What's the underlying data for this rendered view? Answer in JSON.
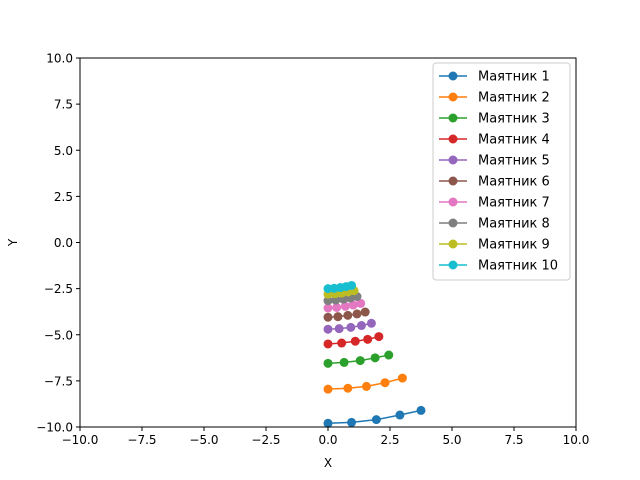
{
  "chart_data": {
    "type": "line",
    "xlabel": "X",
    "ylabel": "Y",
    "xlim": [
      -10,
      10
    ],
    "ylim": [
      -10,
      10
    ],
    "xticks": [
      -10,
      -7.5,
      -5,
      -2.5,
      0,
      2.5,
      5,
      7.5,
      10
    ],
    "yticks": [
      -10,
      -7.5,
      -5,
      -2.5,
      0,
      2.5,
      5,
      7.5,
      10
    ],
    "xtick_labels": [
      "−10.0",
      "−7.5",
      "−5.0",
      "−2.5",
      "0.0",
      "2.5",
      "5.0",
      "7.5",
      "10.0"
    ],
    "ytick_labels": [
      "−10.0",
      "−7.5",
      "−5.0",
      "−2.5",
      "0.0",
      "2.5",
      "5.0",
      "7.5",
      "10.0"
    ],
    "grid": false,
    "legend_position": "top-right",
    "marker": "circle",
    "series": [
      {
        "name": "Маятник 1",
        "color": "#1f77b4",
        "points": [
          [
            0.0,
            -9.8
          ],
          [
            0.95,
            -9.75
          ],
          [
            1.95,
            -9.6
          ],
          [
            2.9,
            -9.35
          ],
          [
            3.75,
            -9.1
          ]
        ]
      },
      {
        "name": "Маятник 2",
        "color": "#ff7f0e",
        "points": [
          [
            0.0,
            -7.95
          ],
          [
            0.8,
            -7.9
          ],
          [
            1.55,
            -7.8
          ],
          [
            2.3,
            -7.6
          ],
          [
            3.0,
            -7.35
          ]
        ]
      },
      {
        "name": "Маятник 3",
        "color": "#2ca02c",
        "points": [
          [
            0.0,
            -6.55
          ],
          [
            0.65,
            -6.5
          ],
          [
            1.3,
            -6.4
          ],
          [
            1.9,
            -6.25
          ],
          [
            2.45,
            -6.1
          ]
        ]
      },
      {
        "name": "Маятник 4",
        "color": "#d62728",
        "points": [
          [
            0.0,
            -5.5
          ],
          [
            0.55,
            -5.45
          ],
          [
            1.1,
            -5.35
          ],
          [
            1.6,
            -5.25
          ],
          [
            2.05,
            -5.1
          ]
        ]
      },
      {
        "name": "Маятник 5",
        "color": "#9467bd",
        "points": [
          [
            0.0,
            -4.7
          ],
          [
            0.45,
            -4.67
          ],
          [
            0.92,
            -4.6
          ],
          [
            1.35,
            -4.5
          ],
          [
            1.75,
            -4.38
          ]
        ]
      },
      {
        "name": "Маятник 6",
        "color": "#8c564b",
        "points": [
          [
            0.0,
            -4.05
          ],
          [
            0.4,
            -4.02
          ],
          [
            0.8,
            -3.95
          ],
          [
            1.17,
            -3.87
          ],
          [
            1.5,
            -3.77
          ]
        ]
      },
      {
        "name": "Маятник 7",
        "color": "#e377c2",
        "points": [
          [
            0.0,
            -3.55
          ],
          [
            0.35,
            -3.52
          ],
          [
            0.7,
            -3.46
          ],
          [
            1.02,
            -3.39
          ],
          [
            1.32,
            -3.3
          ]
        ]
      },
      {
        "name": "Маятник 8",
        "color": "#7f7f7f",
        "points": [
          [
            0.0,
            -3.15
          ],
          [
            0.31,
            -3.12
          ],
          [
            0.62,
            -3.07
          ],
          [
            0.9,
            -3.01
          ],
          [
            1.17,
            -2.93
          ]
        ]
      },
      {
        "name": "Маятник 9",
        "color": "#bcbd22",
        "points": [
          [
            0.0,
            -2.8
          ],
          [
            0.28,
            -2.78
          ],
          [
            0.55,
            -2.74
          ],
          [
            0.81,
            -2.68
          ],
          [
            1.05,
            -2.61
          ]
        ]
      },
      {
        "name": "Маятник 10",
        "color": "#17becf",
        "points": [
          [
            0.0,
            -2.5
          ],
          [
            0.25,
            -2.48
          ],
          [
            0.5,
            -2.44
          ],
          [
            0.73,
            -2.39
          ],
          [
            0.95,
            -2.33
          ]
        ]
      }
    ]
  }
}
